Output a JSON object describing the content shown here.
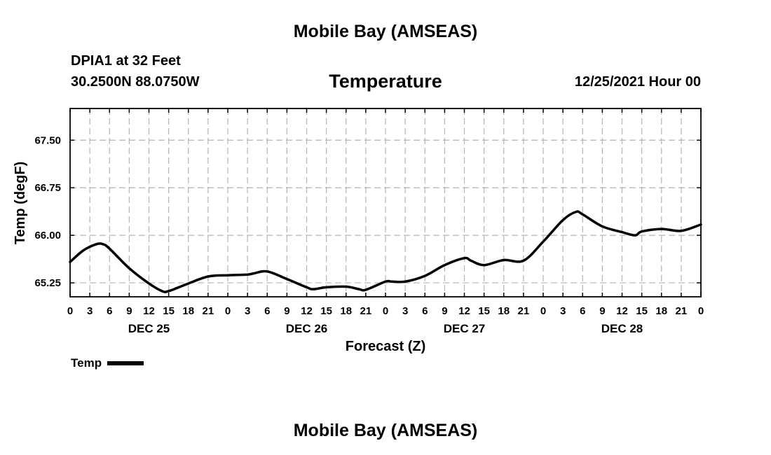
{
  "header": {
    "top_title": "Mobile Bay (AMSEAS)",
    "station": "DPIA1 at 32 Feet",
    "coordinates": "30.2500N  88.0750W",
    "parameter": "Temperature",
    "datetime": "12/25/2021 Hour 00"
  },
  "footer": {
    "bottom_title": "Mobile Bay (AMSEAS)"
  },
  "legend": {
    "label": "Temp"
  },
  "chart_data": {
    "type": "line",
    "title": "Temperature",
    "xlabel": "Forecast (Z)",
    "ylabel": "Temp (degF)",
    "x_unit": "forecast hour",
    "xlim": [
      0,
      96
    ],
    "ylim": [
      65.03,
      68.0
    ],
    "x_ticks": [
      0,
      3,
      6,
      9,
      12,
      15,
      18,
      21,
      24,
      27,
      30,
      33,
      36,
      39,
      42,
      45,
      48,
      51,
      54,
      57,
      60,
      63,
      66,
      69,
      72,
      75,
      78,
      81,
      84,
      87,
      90,
      93,
      96
    ],
    "x_tick_labels": [
      "0",
      "3",
      "6",
      "9",
      "12",
      "15",
      "18",
      "21",
      "0",
      "3",
      "6",
      "9",
      "12",
      "15",
      "18",
      "21",
      "0",
      "3",
      "6",
      "9",
      "12",
      "15",
      "18",
      "21",
      "0",
      "3",
      "6",
      "9",
      "12",
      "15",
      "18",
      "21",
      "0"
    ],
    "y_ticks": [
      65.25,
      66.0,
      66.75,
      67.5
    ],
    "y_tick_labels": [
      "65.25",
      "66.00",
      "66.75",
      "67.50"
    ],
    "day_labels": [
      {
        "hour": 12,
        "label": "DEC 25"
      },
      {
        "hour": 36,
        "label": "DEC 26"
      },
      {
        "hour": 60,
        "label": "DEC 27"
      },
      {
        "hour": 84,
        "label": "DEC 28"
      }
    ],
    "grid": true,
    "series": [
      {
        "name": "Temp",
        "color": "#000000",
        "x": [
          0,
          2,
          4,
          5,
          6,
          9,
          12,
          14,
          15,
          18,
          21,
          24,
          27,
          28,
          30,
          33,
          36,
          37,
          39,
          42,
          44,
          45,
          48,
          49,
          51,
          54,
          57,
          60,
          61,
          63,
          66,
          69,
          72,
          75,
          77,
          78,
          81,
          84,
          86,
          87,
          90,
          93,
          96
        ],
        "y": [
          65.58,
          65.76,
          65.86,
          65.86,
          65.79,
          65.48,
          65.24,
          65.12,
          65.12,
          65.24,
          65.35,
          65.37,
          65.38,
          65.4,
          65.43,
          65.31,
          65.18,
          65.15,
          65.18,
          65.19,
          65.15,
          65.14,
          65.27,
          65.27,
          65.27,
          65.36,
          65.53,
          65.64,
          65.6,
          65.53,
          65.61,
          65.6,
          65.9,
          66.24,
          66.37,
          66.33,
          66.14,
          66.05,
          66.0,
          66.06,
          66.1,
          66.07,
          66.17
        ]
      }
    ]
  }
}
